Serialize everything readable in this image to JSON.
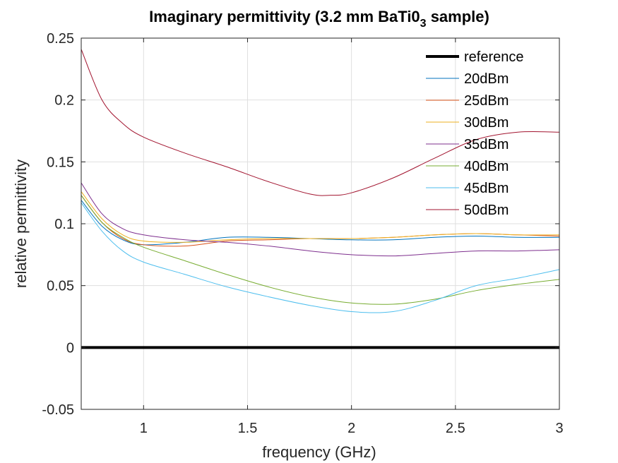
{
  "chart_data": {
    "type": "line",
    "title": "Imaginary permittivity (3.2 mm BaTi0",
    "title_subscript": "3",
    "title_suffix": " sample)",
    "xlabel": "frequency (GHz)",
    "ylabel": "relative permittivity",
    "xlim": [
      0.7,
      3
    ],
    "ylim": [
      -0.05,
      0.25
    ],
    "xticks": [
      1,
      1.5,
      2,
      2.5,
      3
    ],
    "xtick_labels": [
      "1",
      "1.5",
      "2",
      "2.5",
      "3"
    ],
    "yticks": [
      -0.05,
      0,
      0.05,
      0.1,
      0.15,
      0.2,
      0.25
    ],
    "ytick_labels": [
      "-0.05",
      "0",
      "0.05",
      "0.1",
      "0.15",
      "0.2",
      "0.25"
    ],
    "grid": true,
    "legend_position": "top-right",
    "series": [
      {
        "name": "reference",
        "color": "#000000",
        "width": 4,
        "x": [
          0.7,
          3
        ],
        "y": [
          0.0,
          0.0
        ]
      },
      {
        "name": "20dBm",
        "color": "#0072BD",
        "width": 1,
        "x": [
          0.7,
          0.8,
          0.9,
          1.0,
          1.2,
          1.4,
          1.6,
          1.8,
          2.0,
          2.2,
          2.4,
          2.6,
          2.8,
          3.0
        ],
        "y": [
          0.119,
          0.098,
          0.087,
          0.083,
          0.085,
          0.089,
          0.089,
          0.088,
          0.087,
          0.087,
          0.089,
          0.09,
          0.089,
          0.089
        ]
      },
      {
        "name": "25dBm",
        "color": "#D95319",
        "width": 1,
        "x": [
          0.7,
          0.8,
          0.9,
          1.0,
          1.2,
          1.4,
          1.6,
          1.8,
          2.0,
          2.2,
          2.4,
          2.6,
          2.8,
          3.0
        ],
        "y": [
          0.123,
          0.101,
          0.088,
          0.083,
          0.082,
          0.086,
          0.087,
          0.088,
          0.088,
          0.089,
          0.091,
          0.092,
          0.091,
          0.09
        ]
      },
      {
        "name": "30dBm",
        "color": "#EDB120",
        "width": 1,
        "x": [
          0.7,
          0.8,
          0.9,
          1.0,
          1.2,
          1.4,
          1.6,
          1.8,
          2.0,
          2.2,
          2.4,
          2.6,
          2.8,
          3.0
        ],
        "y": [
          0.126,
          0.104,
          0.091,
          0.086,
          0.085,
          0.087,
          0.088,
          0.088,
          0.088,
          0.089,
          0.091,
          0.092,
          0.091,
          0.091
        ]
      },
      {
        "name": "35dBm",
        "color": "#7E2F8E",
        "width": 1,
        "x": [
          0.7,
          0.8,
          0.9,
          1.0,
          1.2,
          1.4,
          1.6,
          1.8,
          2.0,
          2.2,
          2.4,
          2.6,
          2.8,
          3.0
        ],
        "y": [
          0.133,
          0.108,
          0.096,
          0.091,
          0.087,
          0.085,
          0.082,
          0.078,
          0.075,
          0.074,
          0.076,
          0.078,
          0.078,
          0.079
        ]
      },
      {
        "name": "40dBm",
        "color": "#77AC30",
        "width": 1,
        "x": [
          0.7,
          0.8,
          0.9,
          1.0,
          1.2,
          1.4,
          1.6,
          1.8,
          2.0,
          2.2,
          2.4,
          2.6,
          2.8,
          3.0
        ],
        "y": [
          0.123,
          0.101,
          0.089,
          0.081,
          0.07,
          0.059,
          0.049,
          0.041,
          0.036,
          0.035,
          0.039,
          0.046,
          0.051,
          0.055
        ]
      },
      {
        "name": "45dBm",
        "color": "#4DBEEE",
        "width": 1,
        "x": [
          0.7,
          0.8,
          0.9,
          1.0,
          1.2,
          1.4,
          1.6,
          1.8,
          2.0,
          2.2,
          2.4,
          2.6,
          2.8,
          3.0
        ],
        "y": [
          0.117,
          0.094,
          0.078,
          0.069,
          0.059,
          0.049,
          0.041,
          0.034,
          0.029,
          0.029,
          0.038,
          0.05,
          0.056,
          0.063
        ]
      },
      {
        "name": "50dBm",
        "color": "#A2142F",
        "width": 1,
        "x": [
          0.7,
          0.8,
          0.9,
          1.0,
          1.2,
          1.4,
          1.6,
          1.8,
          1.9,
          2.0,
          2.2,
          2.4,
          2.6,
          2.8,
          3.0
        ],
        "y": [
          0.241,
          0.2,
          0.181,
          0.17,
          0.157,
          0.146,
          0.134,
          0.124,
          0.123,
          0.125,
          0.137,
          0.153,
          0.168,
          0.174,
          0.174
        ]
      }
    ]
  }
}
